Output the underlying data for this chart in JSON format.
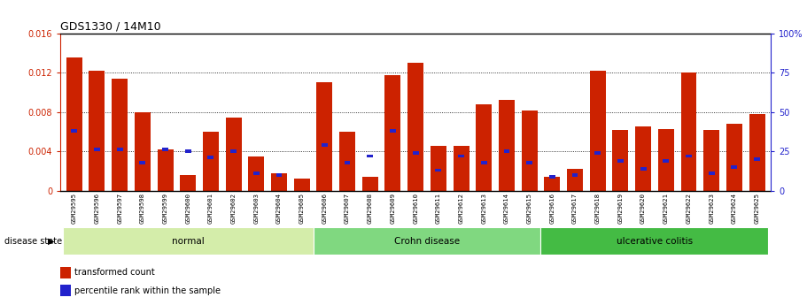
{
  "title": "GDS1330 / 14M10",
  "samples": [
    "GSM29595",
    "GSM29596",
    "GSM29597",
    "GSM29598",
    "GSM29599",
    "GSM29600",
    "GSM29601",
    "GSM29602",
    "GSM29603",
    "GSM29604",
    "GSM29605",
    "GSM29606",
    "GSM29607",
    "GSM29608",
    "GSM29609",
    "GSM29610",
    "GSM29611",
    "GSM29612",
    "GSM29613",
    "GSM29614",
    "GSM29615",
    "GSM29616",
    "GSM29617",
    "GSM29618",
    "GSM29619",
    "GSM29620",
    "GSM29621",
    "GSM29622",
    "GSM29623",
    "GSM29624",
    "GSM29625"
  ],
  "red_values": [
    0.0136,
    0.0122,
    0.0114,
    0.008,
    0.0042,
    0.0016,
    0.006,
    0.0074,
    0.0035,
    0.0018,
    0.0012,
    0.011,
    0.006,
    0.0014,
    0.0118,
    0.013,
    0.0046,
    0.0046,
    0.0088,
    0.0092,
    0.0082,
    0.0014,
    0.0022,
    0.0122,
    0.0062,
    0.0065,
    0.0063,
    0.012,
    0.0062,
    0.0068,
    0.0078
  ],
  "blue_percentiles": [
    38,
    26,
    26,
    18,
    26,
    25,
    21,
    25,
    11,
    10,
    0,
    29,
    18,
    22,
    38,
    24,
    13,
    22,
    18,
    25,
    18,
    9,
    10,
    24,
    19,
    14,
    19,
    22,
    11,
    15,
    20
  ],
  "groups": [
    {
      "label": "normal",
      "start": 0,
      "end": 11,
      "color": "#d4edaa"
    },
    {
      "label": "Crohn disease",
      "start": 11,
      "end": 21,
      "color": "#80d880"
    },
    {
      "label": "ulcerative colitis",
      "start": 21,
      "end": 31,
      "color": "#44bb44"
    }
  ],
  "ylim_left": [
    0,
    0.016
  ],
  "ylim_right": [
    0,
    100
  ],
  "yticks_left": [
    0,
    0.004,
    0.008,
    0.012,
    0.016
  ],
  "yticks_right": [
    0,
    25,
    50,
    75,
    100
  ],
  "red_color": "#cc2200",
  "blue_color": "#2222cc",
  "bar_width": 0.7,
  "left_axis_color": "#cc2200",
  "right_axis_color": "#2222cc",
  "disease_state_label": "disease state",
  "legend_items": [
    {
      "label": "transformed count",
      "color": "#cc2200"
    },
    {
      "label": "percentile rank within the sample",
      "color": "#2222cc"
    }
  ],
  "label_bg_color": "#b8b8b8",
  "figure_bg": "#ffffff"
}
